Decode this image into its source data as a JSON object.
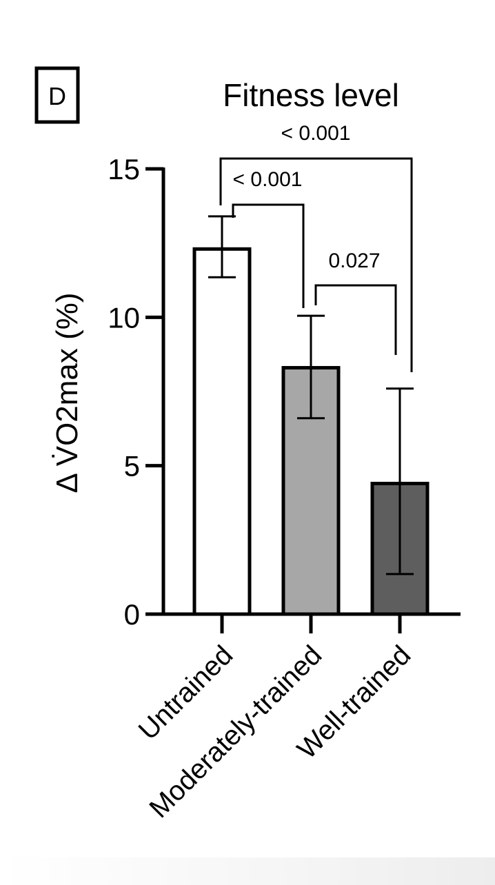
{
  "panel_label": "D",
  "chart_data": {
    "type": "bar",
    "title": "Fitness level",
    "ylabel": "Δ V̇O2max (%)",
    "xlabel": "",
    "ylim": [
      0,
      15
    ],
    "yticks": [
      0,
      5,
      10,
      15
    ],
    "categories": [
      "Untrained",
      "Moderately-trained",
      "Well-trained"
    ],
    "values": [
      12.3,
      8.3,
      4.4
    ],
    "error_upper": [
      13.4,
      10.05,
      7.6
    ],
    "error_lower": [
      11.35,
      6.6,
      1.35
    ],
    "colors": [
      "#ffffff",
      "#a7a7a7",
      "#5e5e5e"
    ],
    "grid": false,
    "legend": "none",
    "comparisons": [
      {
        "from": "Untrained",
        "to": "Moderately-trained",
        "label": "< 0.001"
      },
      {
        "from": "Moderately-trained",
        "to": "Well-trained",
        "label": "0.027"
      },
      {
        "from": "Untrained",
        "to": "Well-trained",
        "label": "< 0.001"
      }
    ]
  }
}
